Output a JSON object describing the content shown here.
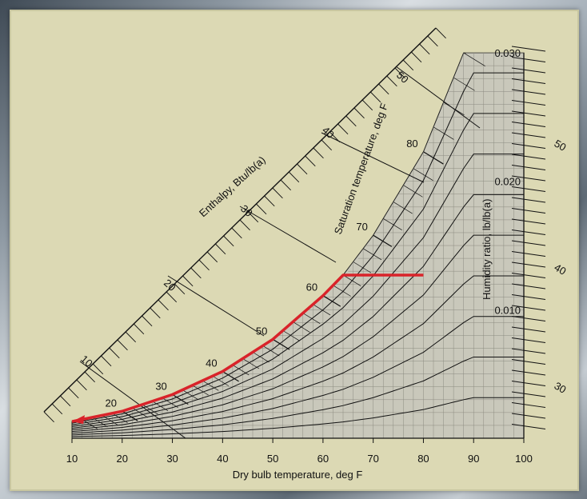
{
  "chart_data": {
    "type": "psychrometric",
    "xlabel": "Dry bulb temperature, deg F",
    "xticks": [
      10,
      20,
      30,
      40,
      50,
      60,
      70,
      80,
      90,
      100
    ],
    "xlim": [
      10,
      100
    ],
    "ylabel": "Humidity ratio, lb/lb(a)",
    "yticks": [
      "0.010",
      "0.020",
      "0.030"
    ],
    "ylim": [
      0,
      0.031
    ],
    "saturation_label": "Saturation temperature, deg F",
    "saturation_ticks": [
      20,
      30,
      40,
      50,
      60,
      70,
      80
    ],
    "enthalpy_label": "Enthalpy, Btu/lb(a)",
    "enthalpy_ticks": [
      10,
      20,
      30,
      40,
      50
    ],
    "right_scale_ticks": [
      30,
      40,
      50
    ],
    "process_path": {
      "color": "#d9232a",
      "points": [
        {
          "dry_bulb": 80,
          "humidity_ratio": 0.0127
        },
        {
          "dry_bulb": 64,
          "humidity_ratio": 0.0127
        },
        {
          "dry_bulb": 60,
          "humidity_ratio": 0.0111
        },
        {
          "dry_bulb": 50,
          "humidity_ratio": 0.0077
        },
        {
          "dry_bulb": 40,
          "humidity_ratio": 0.0052
        },
        {
          "dry_bulb": 30,
          "humidity_ratio": 0.0034
        },
        {
          "dry_bulb": 20,
          "humidity_ratio": 0.0021
        },
        {
          "dry_bulb": 10,
          "humidity_ratio": 0.0013
        }
      ]
    },
    "grid": true
  }
}
